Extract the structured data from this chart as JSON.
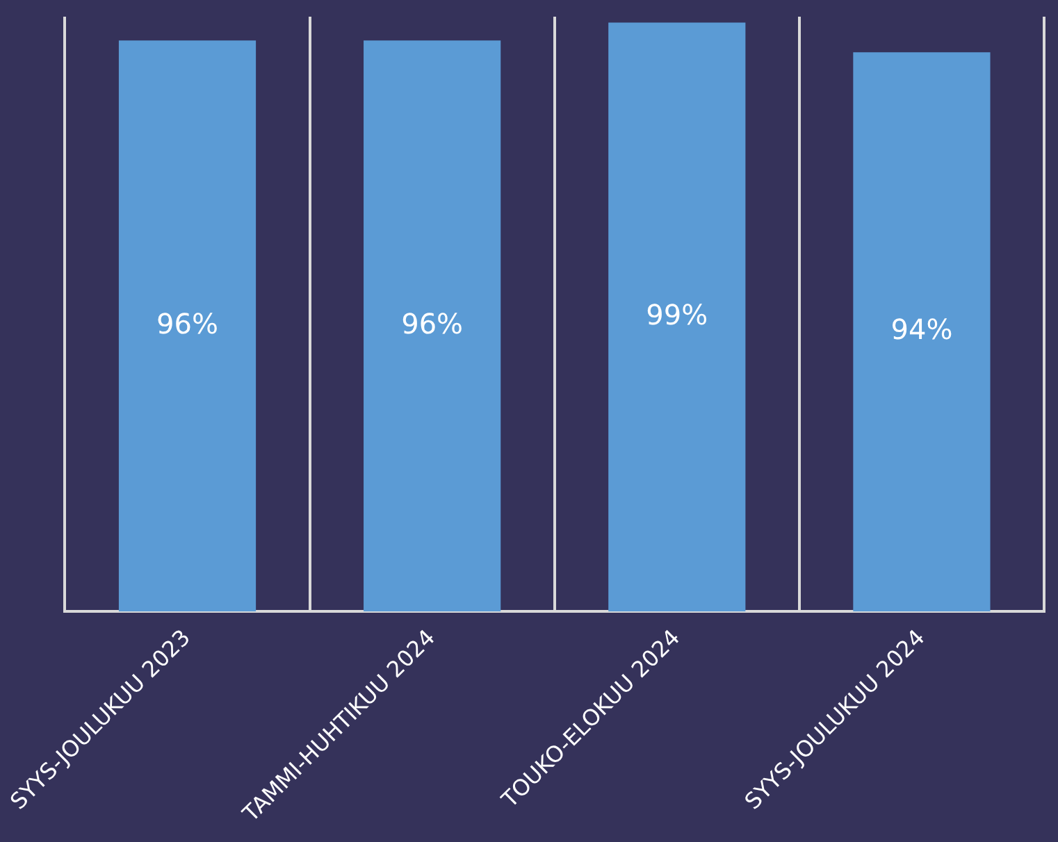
{
  "chart_data": {
    "type": "bar",
    "categories": [
      "SYYS-JOULUKUU 2023",
      "TAMMI-HUHTIKUU 2024",
      "TOUKO-ELOKUU 2024",
      "SYYS-JOULUKUU 2024"
    ],
    "values": [
      96,
      96,
      99,
      94
    ],
    "color": "#5b9bd5",
    "value_labels": [
      "96%",
      "96%",
      "99%",
      "94%"
    ],
    "ylim": [
      0,
      100
    ],
    "tick_labels": "x",
    "grid": "x",
    "legend": false
  }
}
